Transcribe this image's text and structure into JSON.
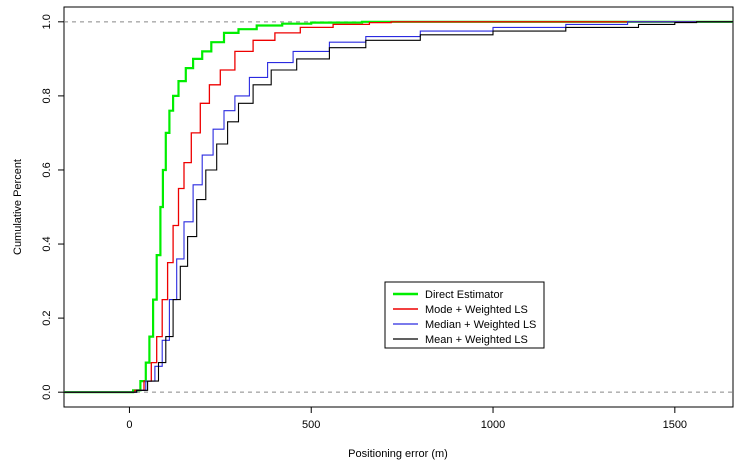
{
  "chart_data": {
    "type": "line",
    "title": "",
    "xlabel": "Positioning error (m)",
    "ylabel": "Cumulative Percent",
    "xlim": [
      -180,
      1660
    ],
    "ylim": [
      -0.04,
      1.04
    ],
    "xticks": [
      0,
      500,
      1000,
      1500
    ],
    "yticks": [
      0.0,
      0.2,
      0.4,
      0.6,
      0.8,
      1.0
    ],
    "xtick_labels": [
      "0",
      "500",
      "1000",
      "1500"
    ],
    "ytick_labels": [
      "0.0",
      "0.2",
      "0.4",
      "0.6",
      "0.8",
      "1.0"
    ],
    "reference_lines": [
      0,
      1
    ],
    "legend_position": "lower-right",
    "series": [
      {
        "name": "Direct Estimator",
        "color": "#00ee00",
        "width": 2.2,
        "points": [
          [
            -180,
            0
          ],
          [
            0,
            0
          ],
          [
            10,
            0.005
          ],
          [
            30,
            0.03
          ],
          [
            45,
            0.08
          ],
          [
            55,
            0.15
          ],
          [
            65,
            0.25
          ],
          [
            75,
            0.37
          ],
          [
            85,
            0.5
          ],
          [
            92,
            0.6
          ],
          [
            100,
            0.7
          ],
          [
            110,
            0.76
          ],
          [
            120,
            0.8
          ],
          [
            135,
            0.84
          ],
          [
            155,
            0.875
          ],
          [
            175,
            0.9
          ],
          [
            200,
            0.92
          ],
          [
            225,
            0.945
          ],
          [
            260,
            0.97
          ],
          [
            300,
            0.98
          ],
          [
            350,
            0.99
          ],
          [
            420,
            0.995
          ],
          [
            500,
            0.998
          ],
          [
            640,
            1.0
          ],
          [
            1660,
            1.0
          ]
        ]
      },
      {
        "name": "Mode + Weighted LS",
        "color": "#ee0000",
        "width": 1.3,
        "points": [
          [
            -180,
            0
          ],
          [
            0,
            0
          ],
          [
            15,
            0.005
          ],
          [
            40,
            0.03
          ],
          [
            60,
            0.08
          ],
          [
            75,
            0.15
          ],
          [
            90,
            0.25
          ],
          [
            105,
            0.35
          ],
          [
            120,
            0.45
          ],
          [
            135,
            0.55
          ],
          [
            150,
            0.62
          ],
          [
            170,
            0.7
          ],
          [
            195,
            0.78
          ],
          [
            220,
            0.83
          ],
          [
            250,
            0.87
          ],
          [
            290,
            0.92
          ],
          [
            340,
            0.95
          ],
          [
            400,
            0.97
          ],
          [
            470,
            0.985
          ],
          [
            560,
            0.993
          ],
          [
            660,
            0.998
          ],
          [
            720,
            1.0
          ],
          [
            1660,
            1.0
          ]
        ]
      },
      {
        "name": "Median + Weighted LS",
        "color": "#2a2ae0",
        "width": 1.1,
        "points": [
          [
            -180,
            0
          ],
          [
            0,
            0
          ],
          [
            20,
            0.005
          ],
          [
            45,
            0.03
          ],
          [
            70,
            0.07
          ],
          [
            90,
            0.14
          ],
          [
            110,
            0.25
          ],
          [
            130,
            0.36
          ],
          [
            150,
            0.46
          ],
          [
            175,
            0.56
          ],
          [
            200,
            0.64
          ],
          [
            230,
            0.71
          ],
          [
            260,
            0.76
          ],
          [
            290,
            0.8
          ],
          [
            330,
            0.85
          ],
          [
            380,
            0.89
          ],
          [
            450,
            0.92
          ],
          [
            550,
            0.945
          ],
          [
            650,
            0.96
          ],
          [
            800,
            0.975
          ],
          [
            1000,
            0.985
          ],
          [
            1200,
            0.993
          ],
          [
            1370,
            1.0
          ],
          [
            1660,
            1.0
          ]
        ]
      },
      {
        "name": "Mean + Weighted LS",
        "color": "#000000",
        "width": 1.1,
        "points": [
          [
            -180,
            0
          ],
          [
            0,
            0
          ],
          [
            20,
            0.005
          ],
          [
            50,
            0.03
          ],
          [
            80,
            0.08
          ],
          [
            100,
            0.15
          ],
          [
            120,
            0.25
          ],
          [
            140,
            0.34
          ],
          [
            160,
            0.42
          ],
          [
            185,
            0.52
          ],
          [
            210,
            0.6
          ],
          [
            240,
            0.67
          ],
          [
            270,
            0.73
          ],
          [
            300,
            0.78
          ],
          [
            340,
            0.83
          ],
          [
            390,
            0.87
          ],
          [
            460,
            0.9
          ],
          [
            550,
            0.93
          ],
          [
            650,
            0.95
          ],
          [
            800,
            0.965
          ],
          [
            1000,
            0.975
          ],
          [
            1200,
            0.985
          ],
          [
            1400,
            0.993
          ],
          [
            1500,
            0.998
          ],
          [
            1560,
            1.0
          ],
          [
            1660,
            1.0
          ]
        ]
      }
    ]
  }
}
